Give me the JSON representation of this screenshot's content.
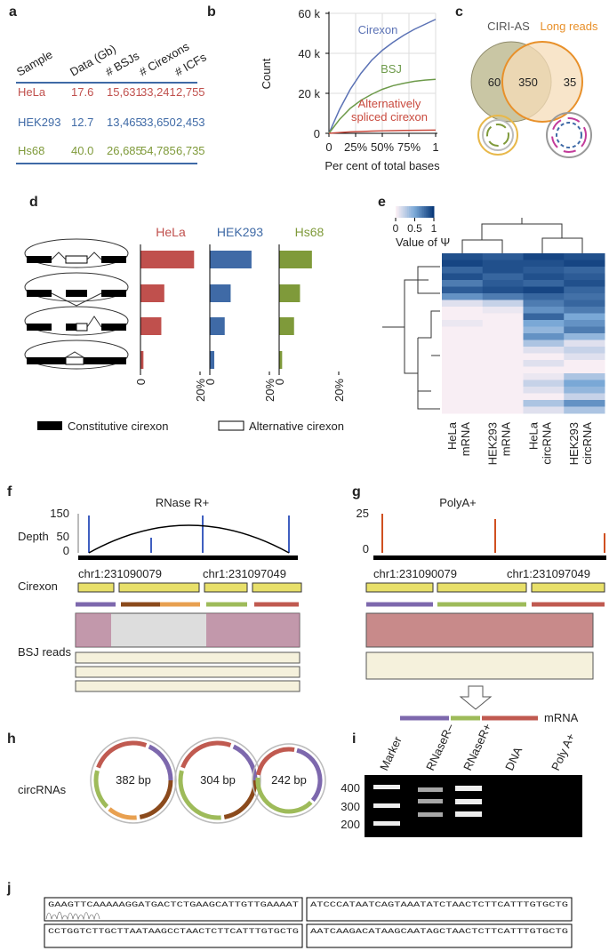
{
  "panel_labels": [
    "a",
    "b",
    "c",
    "d",
    "e",
    "f",
    "g",
    "h",
    "i",
    "j"
  ],
  "table_a": {
    "header": [
      "Sample",
      "Data (Gb)",
      "# BSJs",
      "# Cirexons",
      "# ICFs"
    ],
    "rows": [
      [
        "HeLa",
        "17.6",
        "15,631",
        "33,241",
        "2,755"
      ],
      [
        "HEK293",
        "12.7",
        "13,465",
        "33,650",
        "2,453"
      ],
      [
        "Hs68",
        "40.0",
        "26,685",
        "54,785",
        "6,735"
      ]
    ],
    "row_colors": [
      "#c0504d",
      "#3f6aa6",
      "#7f9a3a"
    ]
  },
  "chart_data": [
    {
      "type": "line",
      "ylabel": "Count",
      "xlabel": "Per cent of total bases",
      "x": [
        0,
        0.1,
        0.2,
        0.3,
        0.4,
        0.5,
        0.6,
        0.7,
        0.8,
        0.9,
        1
      ],
      "series": [
        {
          "label_lines": [
            "Cirexon"
          ],
          "color": "#5b72b5",
          "values": [
            0,
            12000,
            22000,
            30000,
            36500,
            41500,
            45500,
            49000,
            52000,
            54500,
            57000
          ]
        },
        {
          "label_lines": [
            "BSJ"
          ],
          "color": "#6d9a4a",
          "values": [
            0,
            7000,
            12500,
            16500,
            19500,
            22000,
            23800,
            25000,
            26000,
            26600,
            27000
          ]
        },
        {
          "label_lines": [
            "Alternatively",
            "spliced cirexon"
          ],
          "color": "#c94a3e",
          "values": [
            0,
            400,
            700,
            900,
            1100,
            1250,
            1350,
            1450,
            1500,
            1550,
            1600
          ]
        }
      ],
      "xlim": [
        0,
        1
      ],
      "xticks": [
        0,
        {
          "value": 0.25,
          "label": "25%"
        },
        {
          "value": 0.5,
          "label": "50%"
        },
        {
          "value": 0.75,
          "label": "75%"
        },
        1
      ],
      "ylim": [
        0,
        60000
      ],
      "yticks": [
        0,
        {
          "value": 20000,
          "label": "20 k"
        },
        {
          "value": 40000,
          "label": "40 k"
        },
        {
          "value": 60000,
          "label": "60 k"
        }
      ],
      "grid": true
    },
    {
      "type": "hbar",
      "categories": [
        null,
        null,
        null,
        null
      ],
      "series": [
        {
          "name": "HeLa",
          "color": "#c0504d",
          "values": [
            18,
            8,
            7,
            1
          ]
        },
        {
          "name": "HEK293",
          "color": "#3f6aa6",
          "values": [
            14,
            7,
            5,
            1.5
          ]
        },
        {
          "name": "Hs68",
          "color": "#7f9a3a",
          "values": [
            11,
            7,
            5,
            1
          ]
        }
      ],
      "xlim": [
        0,
        20
      ],
      "xticks": [
        0,
        {
          "value": 20,
          "label": "20%"
        }
      ],
      "legend": [
        "Constitutive cirexon",
        "Alternative cirexon"
      ]
    },
    {
      "type": "heatmap",
      "columns": [
        [
          "HeLa",
          "mRNA"
        ],
        [
          "HEK293",
          "mRNA"
        ],
        [
          "HeLa",
          "circRNA"
        ],
        [
          "HEK293",
          "circRNA"
        ]
      ],
      "zlim": [
        0,
        1
      ],
      "zticks": [
        0,
        0.5,
        1
      ],
      "colorbar_label": "Value of Ψ",
      "colors": [
        "#f8eef4",
        "#7aa8d6",
        "#0b3a7a"
      ],
      "values": [
        [
          0.9,
          0.85,
          0.95,
          0.9
        ],
        [
          0.95,
          0.9,
          0.9,
          0.95
        ],
        [
          0.8,
          0.9,
          0.85,
          0.8
        ],
        [
          0.9,
          0.8,
          0.9,
          0.85
        ],
        [
          0.7,
          0.85,
          0.8,
          0.9
        ],
        [
          0.85,
          0.9,
          0.95,
          0.8
        ],
        [
          0.6,
          0.7,
          0.8,
          0.75
        ],
        [
          0.1,
          0.2,
          0.7,
          0.8
        ],
        [
          0,
          0.05,
          0.6,
          0.7
        ],
        [
          0,
          0,
          0.8,
          0.5
        ],
        [
          0.05,
          0,
          0.5,
          0.6
        ],
        [
          0,
          0,
          0.4,
          0.7
        ],
        [
          0,
          0,
          0.6,
          0.4
        ],
        [
          0,
          0,
          0.3,
          0.1
        ],
        [
          0,
          0,
          0.1,
          0.2
        ],
        [
          0,
          0,
          0,
          0.1
        ],
        [
          0,
          0,
          0.1,
          0
        ],
        [
          0,
          0,
          0,
          0
        ],
        [
          0,
          0,
          0.05,
          0.3
        ],
        [
          0,
          0,
          0.2,
          0.5
        ],
        [
          0,
          0,
          0.1,
          0.4
        ],
        [
          0,
          0,
          0,
          0.2
        ],
        [
          0,
          0,
          0.3,
          0.6
        ],
        [
          0,
          0,
          0.1,
          0.3
        ]
      ]
    }
  ],
  "venn_c": {
    "sets": [
      "CIRI-AS",
      "Long reads"
    ],
    "values": [
      60,
      350,
      35
    ]
  },
  "panel_f": {
    "title": "RNase R+",
    "depth_label": "Depth",
    "depth_ticks": [
      150,
      50,
      0
    ],
    "coords": [
      "chr1:231090079",
      "chr1:231097049"
    ],
    "cirexon_label": "Cirexon",
    "reads_label": "BSJ reads"
  },
  "panel_g": {
    "title": "PolyA+",
    "depth_ticks": [
      25,
      0
    ],
    "coords": [
      "chr1:231090079",
      "chr1:231097049"
    ],
    "mrna_label": "mRNA"
  },
  "panel_h": {
    "label": "circRNAs",
    "sizes": [
      "382 bp",
      "304 bp",
      "242 bp"
    ]
  },
  "panel_i": {
    "lanes": [
      "Marker",
      "RNaseR–",
      "RNaseR+",
      "DNA",
      "Poly A+"
    ],
    "sizes": [
      400,
      300,
      200
    ]
  },
  "panel_j": {
    "sequences": [
      "GAAGTTCAAAAAGGATGACTCTGAAGCATTGTTGAAAAT",
      "ATCCCATAATCAGTAAATATCTAACTCTTCATTTGTGCTG",
      "CCTGGTCTTGCTTAATAAGCCTAACTCTTCATTTGTGCTG",
      "AATCAAGACATAAGCAATAGCTAACTCTTCATTTGTGCTG"
    ]
  }
}
